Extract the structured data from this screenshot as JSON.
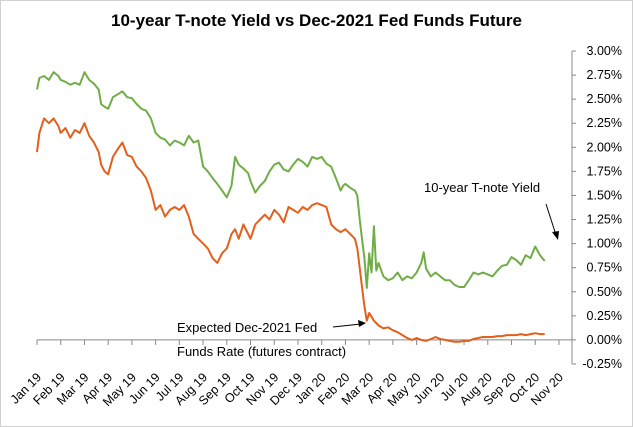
{
  "chart_data": {
    "type": "line",
    "title": "10-year T-note Yield vs Dec-2021 Fed Funds Future",
    "x_tick_labels": [
      "Jan 19",
      "Feb 19",
      "Mar 19",
      "Apr 19",
      "May 19",
      "Jun 19",
      "Jul 19",
      "Aug 19",
      "Sep 19",
      "Oct 19",
      "Nov 19",
      "Dec 19",
      "Jan 20",
      "Feb 20",
      "Mar 20",
      "Apr 20",
      "May 20",
      "Jun 20",
      "Jul 20",
      "Aug 20",
      "Sep 20",
      "Oct 20",
      "Nov 20"
    ],
    "y_tick_labels": [
      "3.00%",
      "2.75%",
      "2.50%",
      "2.25%",
      "2.00%",
      "1.75%",
      "1.50%",
      "1.25%",
      "1.00%",
      "0.75%",
      "0.50%",
      "0.25%",
      "0.00%",
      "-0.25%"
    ],
    "ylim": [
      -0.25,
      3.0
    ],
    "grid": false,
    "colors": {
      "tnote": "#70ad47",
      "fedfunds": "#e2601b"
    },
    "series": [
      {
        "name": "10-year T-note Yield",
        "values": [
          [
            0.0,
            2.6
          ],
          [
            0.1,
            2.72
          ],
          [
            0.3,
            2.74
          ],
          [
            0.5,
            2.7
          ],
          [
            0.7,
            2.78
          ],
          [
            0.9,
            2.74
          ],
          [
            1.0,
            2.7
          ],
          [
            1.2,
            2.68
          ],
          [
            1.4,
            2.65
          ],
          [
            1.6,
            2.67
          ],
          [
            1.8,
            2.65
          ],
          [
            2.0,
            2.78
          ],
          [
            2.2,
            2.7
          ],
          [
            2.4,
            2.66
          ],
          [
            2.6,
            2.6
          ],
          [
            2.7,
            2.45
          ],
          [
            2.85,
            2.42
          ],
          [
            3.0,
            2.4
          ],
          [
            3.2,
            2.52
          ],
          [
            3.4,
            2.55
          ],
          [
            3.6,
            2.58
          ],
          [
            3.8,
            2.52
          ],
          [
            4.0,
            2.51
          ],
          [
            4.2,
            2.45
          ],
          [
            4.4,
            2.4
          ],
          [
            4.6,
            2.38
          ],
          [
            4.8,
            2.3
          ],
          [
            5.0,
            2.15
          ],
          [
            5.2,
            2.1
          ],
          [
            5.4,
            2.08
          ],
          [
            5.6,
            2.02
          ],
          [
            5.8,
            2.07
          ],
          [
            6.0,
            2.05
          ],
          [
            6.2,
            2.02
          ],
          [
            6.4,
            2.12
          ],
          [
            6.6,
            2.05
          ],
          [
            6.8,
            2.07
          ],
          [
            7.0,
            1.8
          ],
          [
            7.2,
            1.75
          ],
          [
            7.4,
            1.68
          ],
          [
            7.6,
            1.62
          ],
          [
            7.8,
            1.55
          ],
          [
            8.0,
            1.48
          ],
          [
            8.2,
            1.6
          ],
          [
            8.35,
            1.9
          ],
          [
            8.5,
            1.82
          ],
          [
            8.7,
            1.78
          ],
          [
            8.9,
            1.73
          ],
          [
            9.0,
            1.65
          ],
          [
            9.2,
            1.53
          ],
          [
            9.4,
            1.6
          ],
          [
            9.6,
            1.65
          ],
          [
            9.8,
            1.75
          ],
          [
            10.0,
            1.82
          ],
          [
            10.2,
            1.84
          ],
          [
            10.4,
            1.77
          ],
          [
            10.6,
            1.75
          ],
          [
            10.8,
            1.82
          ],
          [
            11.0,
            1.88
          ],
          [
            11.2,
            1.85
          ],
          [
            11.4,
            1.8
          ],
          [
            11.6,
            1.9
          ],
          [
            11.8,
            1.88
          ],
          [
            12.0,
            1.9
          ],
          [
            12.2,
            1.83
          ],
          [
            12.4,
            1.8
          ],
          [
            12.6,
            1.68
          ],
          [
            12.8,
            1.55
          ],
          [
            12.9,
            1.6
          ],
          [
            13.0,
            1.62
          ],
          [
            13.2,
            1.58
          ],
          [
            13.4,
            1.55
          ],
          [
            13.5,
            1.5
          ],
          [
            13.6,
            1.25
          ],
          [
            13.7,
            1.05
          ],
          [
            13.8,
            0.85
          ],
          [
            13.9,
            0.54
          ],
          [
            14.0,
            0.9
          ],
          [
            14.1,
            0.7
          ],
          [
            14.2,
            1.18
          ],
          [
            14.3,
            0.72
          ],
          [
            14.4,
            0.8
          ],
          [
            14.6,
            0.66
          ],
          [
            14.8,
            0.62
          ],
          [
            15.0,
            0.64
          ],
          [
            15.2,
            0.7
          ],
          [
            15.4,
            0.62
          ],
          [
            15.6,
            0.66
          ],
          [
            15.8,
            0.64
          ],
          [
            16.0,
            0.7
          ],
          [
            16.2,
            0.8
          ],
          [
            16.3,
            0.91
          ],
          [
            16.4,
            0.74
          ],
          [
            16.6,
            0.66
          ],
          [
            16.8,
            0.7
          ],
          [
            17.0,
            0.66
          ],
          [
            17.2,
            0.62
          ],
          [
            17.4,
            0.62
          ],
          [
            17.6,
            0.57
          ],
          [
            17.8,
            0.55
          ],
          [
            18.0,
            0.55
          ],
          [
            18.2,
            0.62
          ],
          [
            18.4,
            0.7
          ],
          [
            18.6,
            0.68
          ],
          [
            18.8,
            0.7
          ],
          [
            19.0,
            0.68
          ],
          [
            19.2,
            0.66
          ],
          [
            19.4,
            0.72
          ],
          [
            19.6,
            0.77
          ],
          [
            19.8,
            0.78
          ],
          [
            20.0,
            0.86
          ],
          [
            20.2,
            0.83
          ],
          [
            20.4,
            0.78
          ],
          [
            20.6,
            0.88
          ],
          [
            20.8,
            0.85
          ],
          [
            21.0,
            0.97
          ],
          [
            21.2,
            0.88
          ],
          [
            21.4,
            0.82
          ]
        ]
      },
      {
        "name": "Expected Dec-2021 Fed Funds Rate (futures contract)",
        "values": [
          [
            0.0,
            1.95
          ],
          [
            0.1,
            2.15
          ],
          [
            0.3,
            2.3
          ],
          [
            0.5,
            2.25
          ],
          [
            0.7,
            2.3
          ],
          [
            0.9,
            2.22
          ],
          [
            1.0,
            2.15
          ],
          [
            1.2,
            2.2
          ],
          [
            1.4,
            2.1
          ],
          [
            1.6,
            2.18
          ],
          [
            1.8,
            2.15
          ],
          [
            2.0,
            2.25
          ],
          [
            2.2,
            2.12
          ],
          [
            2.4,
            2.05
          ],
          [
            2.6,
            1.95
          ],
          [
            2.7,
            1.82
          ],
          [
            2.85,
            1.75
          ],
          [
            3.0,
            1.72
          ],
          [
            3.2,
            1.9
          ],
          [
            3.4,
            1.98
          ],
          [
            3.6,
            2.05
          ],
          [
            3.8,
            1.92
          ],
          [
            4.0,
            1.9
          ],
          [
            4.2,
            1.8
          ],
          [
            4.4,
            1.75
          ],
          [
            4.6,
            1.68
          ],
          [
            4.8,
            1.55
          ],
          [
            5.0,
            1.35
          ],
          [
            5.2,
            1.4
          ],
          [
            5.4,
            1.28
          ],
          [
            5.6,
            1.35
          ],
          [
            5.8,
            1.38
          ],
          [
            6.0,
            1.35
          ],
          [
            6.2,
            1.4
          ],
          [
            6.4,
            1.28
          ],
          [
            6.6,
            1.1
          ],
          [
            6.8,
            1.05
          ],
          [
            7.0,
            1.0
          ],
          [
            7.2,
            0.95
          ],
          [
            7.4,
            0.85
          ],
          [
            7.6,
            0.8
          ],
          [
            7.8,
            0.9
          ],
          [
            8.0,
            0.95
          ],
          [
            8.2,
            1.1
          ],
          [
            8.35,
            1.15
          ],
          [
            8.5,
            1.05
          ],
          [
            8.7,
            1.2
          ],
          [
            8.9,
            1.1
          ],
          [
            9.0,
            1.05
          ],
          [
            9.2,
            1.2
          ],
          [
            9.4,
            1.25
          ],
          [
            9.6,
            1.3
          ],
          [
            9.8,
            1.25
          ],
          [
            10.0,
            1.35
          ],
          [
            10.2,
            1.3
          ],
          [
            10.4,
            1.22
          ],
          [
            10.6,
            1.38
          ],
          [
            10.8,
            1.35
          ],
          [
            11.0,
            1.32
          ],
          [
            11.2,
            1.38
          ],
          [
            11.4,
            1.35
          ],
          [
            11.6,
            1.4
          ],
          [
            11.8,
            1.42
          ],
          [
            12.0,
            1.4
          ],
          [
            12.2,
            1.38
          ],
          [
            12.4,
            1.2
          ],
          [
            12.6,
            1.15
          ],
          [
            12.8,
            1.12
          ],
          [
            13.0,
            1.15
          ],
          [
            13.2,
            1.1
          ],
          [
            13.4,
            1.05
          ],
          [
            13.5,
            0.95
          ],
          [
            13.6,
            0.75
          ],
          [
            13.7,
            0.55
          ],
          [
            13.8,
            0.35
          ],
          [
            13.9,
            0.2
          ],
          [
            14.0,
            0.28
          ],
          [
            14.2,
            0.2
          ],
          [
            14.4,
            0.15
          ],
          [
            14.6,
            0.12
          ],
          [
            14.8,
            0.13
          ],
          [
            15.0,
            0.1
          ],
          [
            15.2,
            0.08
          ],
          [
            15.4,
            0.05
          ],
          [
            15.6,
            0.02
          ],
          [
            15.8,
            0.0
          ],
          [
            16.0,
            0.02
          ],
          [
            16.2,
            0.0
          ],
          [
            16.4,
            -0.01
          ],
          [
            16.6,
            0.01
          ],
          [
            16.8,
            0.03
          ],
          [
            17.0,
            0.01
          ],
          [
            17.2,
            0.0
          ],
          [
            17.4,
            -0.01
          ],
          [
            17.6,
            -0.02
          ],
          [
            17.8,
            -0.02
          ],
          [
            18.0,
            -0.01
          ],
          [
            18.2,
            -0.01
          ],
          [
            18.4,
            0.01
          ],
          [
            18.6,
            0.02
          ],
          [
            18.8,
            0.03
          ],
          [
            19.0,
            0.03
          ],
          [
            19.2,
            0.03
          ],
          [
            19.4,
            0.04
          ],
          [
            19.6,
            0.04
          ],
          [
            19.8,
            0.05
          ],
          [
            20.0,
            0.05
          ],
          [
            20.2,
            0.05
          ],
          [
            20.4,
            0.06
          ],
          [
            20.6,
            0.05
          ],
          [
            20.8,
            0.06
          ],
          [
            21.0,
            0.07
          ],
          [
            21.2,
            0.06
          ],
          [
            21.4,
            0.06
          ]
        ]
      }
    ],
    "annotations": {
      "tnote_label": "10-year T-note Yield",
      "fedfunds_label_line1": "Expected Dec-2021 Fed",
      "fedfunds_label_line2": "Funds Rate (futures contract)"
    }
  }
}
